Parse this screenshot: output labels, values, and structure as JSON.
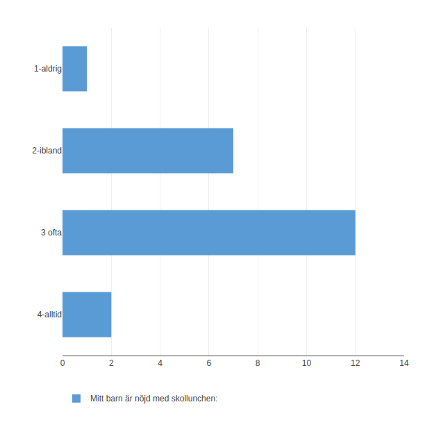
{
  "chart_data": {
    "type": "bar",
    "orientation": "horizontal",
    "categories": [
      "1-aldrig",
      "2-ibland",
      "3 ofta",
      "4-alltid"
    ],
    "series": [
      {
        "name": "Mitt barn är nöjd med skollunchen:",
        "color": "#5b9bd5",
        "values": [
          1,
          7,
          12,
          2
        ]
      }
    ],
    "xlim": [
      0,
      14
    ],
    "xticks": [
      0,
      2,
      4,
      6,
      8,
      10,
      12,
      14
    ],
    "grid": true,
    "legend": "bottom"
  }
}
